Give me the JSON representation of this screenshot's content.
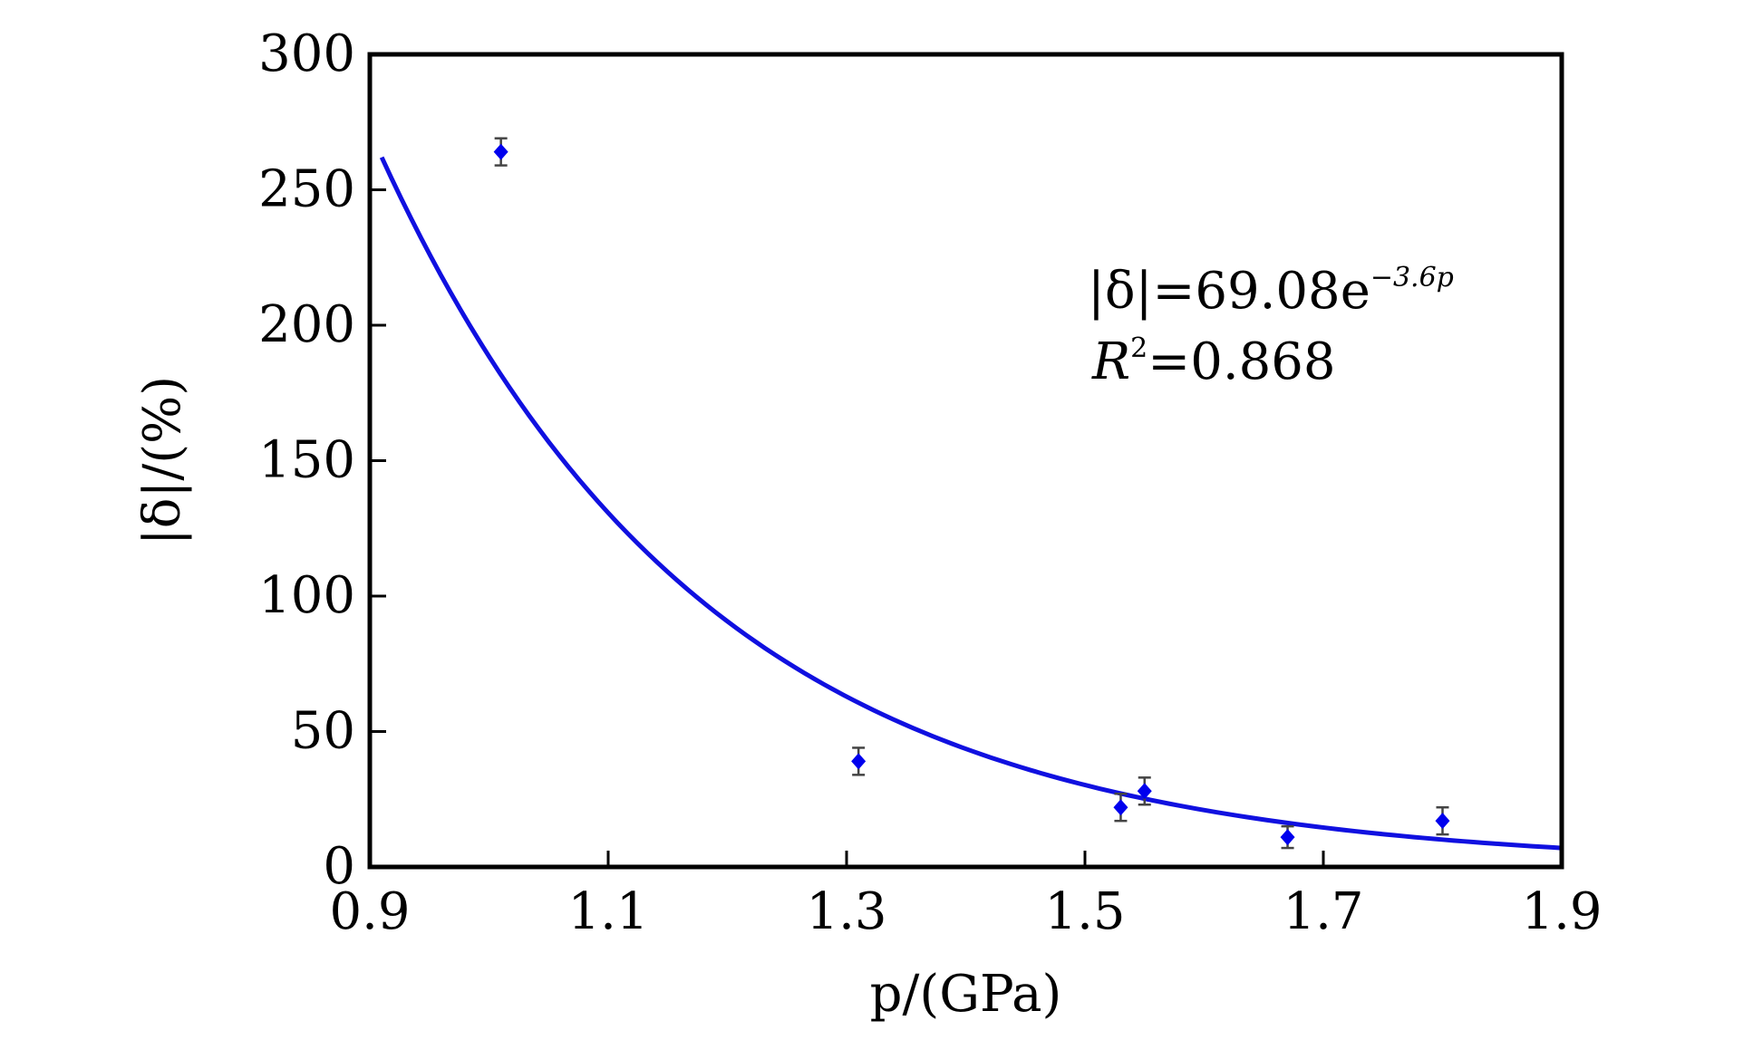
{
  "chart_data": {
    "type": "scatter",
    "xlabel": "p/(GPa)",
    "ylabel": "|δ|/(%)",
    "xlim": [
      0.9,
      1.9
    ],
    "ylim": [
      0,
      300
    ],
    "x_ticks": [
      0.9,
      1.1,
      1.3,
      1.5,
      1.7,
      1.9
    ],
    "y_ticks": [
      0,
      50,
      100,
      150,
      200,
      250,
      300
    ],
    "x_tick_labels": [
      "0.9",
      "1.1",
      "1.3",
      "1.5",
      "1.7",
      "1.9"
    ],
    "y_tick_labels": [
      "0",
      "50",
      "100",
      "150",
      "200",
      "250",
      "300"
    ],
    "grid": false,
    "points": [
      {
        "x": 1.01,
        "y": 264,
        "err": 5
      },
      {
        "x": 1.31,
        "y": 39,
        "err": 5
      },
      {
        "x": 1.53,
        "y": 22,
        "err": 5
      },
      {
        "x": 1.55,
        "y": 28,
        "err": 5
      },
      {
        "x": 1.67,
        "y": 11,
        "err": 4
      },
      {
        "x": 1.8,
        "y": 17,
        "err": 5
      }
    ],
    "fit": {
      "x_start": 0.91,
      "x_end": 1.9,
      "y_start": 262,
      "y_end": 7
    },
    "annotation": {
      "equation_main": "|δ|=69.08e",
      "equation_exponent": "−3.6p",
      "r2_label": "R",
      "r2_sup": "2",
      "r2_value": "=0.868"
    },
    "colors": {
      "marker": "#0000ee",
      "fit_line": "#1010e0",
      "error_bar": "#444444",
      "axis": "#000000"
    }
  }
}
